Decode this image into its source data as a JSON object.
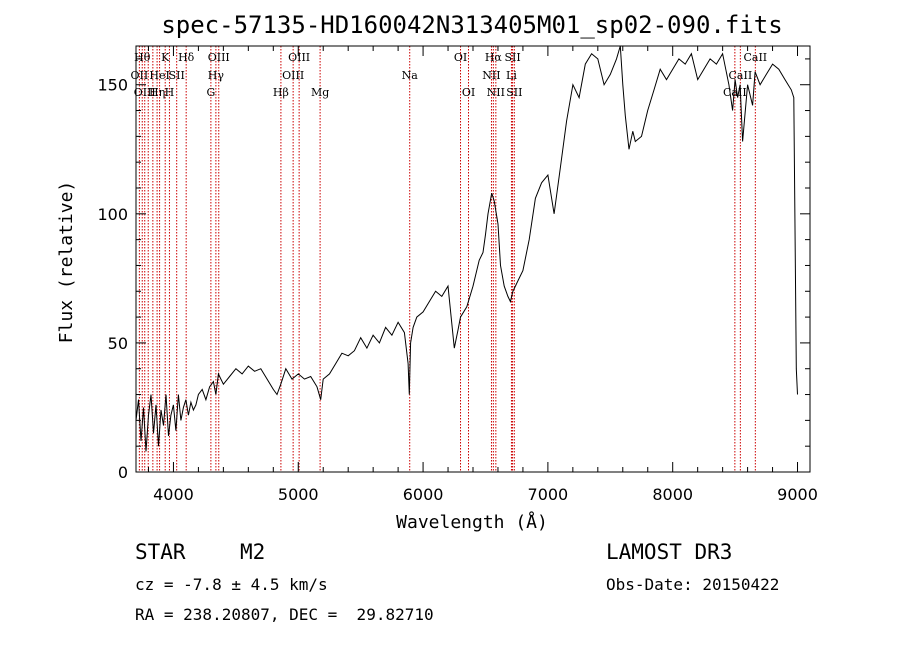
{
  "chart_data": {
    "type": "line",
    "title": "spec-57135-HD160042N313405M01_sp02-090.fits",
    "xlabel": "Wavelength (Å)",
    "ylabel": "Flux (relative)",
    "xlim": [
      3700,
      9100
    ],
    "ylim": [
      0,
      165
    ],
    "xticks": [
      4000,
      5000,
      6000,
      7000,
      8000,
      9000
    ],
    "yticks": [
      0,
      50,
      100,
      150
    ],
    "series": [
      {
        "name": "spectrum",
        "x": [
          3700,
          3720,
          3740,
          3760,
          3780,
          3800,
          3820,
          3840,
          3860,
          3880,
          3900,
          3920,
          3940,
          3960,
          3980,
          4000,
          4020,
          4040,
          4060,
          4080,
          4100,
          4120,
          4140,
          4160,
          4180,
          4200,
          4230,
          4260,
          4290,
          4320,
          4340,
          4360,
          4380,
          4400,
          4450,
          4500,
          4550,
          4600,
          4650,
          4700,
          4750,
          4800,
          4830,
          4860,
          4900,
          4950,
          5000,
          5050,
          5100,
          5150,
          5180,
          5200,
          5250,
          5300,
          5350,
          5400,
          5450,
          5500,
          5550,
          5600,
          5650,
          5700,
          5750,
          5800,
          5850,
          5880,
          5890,
          5900,
          5920,
          5950,
          6000,
          6050,
          6100,
          6150,
          6200,
          6250,
          6280,
          6300,
          6350,
          6400,
          6450,
          6480,
          6500,
          6520,
          6550,
          6570,
          6600,
          6620,
          6650,
          6680,
          6700,
          6720,
          6740,
          6760,
          6800,
          6850,
          6900,
          6950,
          7000,
          7050,
          7100,
          7150,
          7200,
          7250,
          7300,
          7350,
          7400,
          7450,
          7500,
          7550,
          7580,
          7600,
          7620,
          7650,
          7680,
          7700,
          7750,
          7800,
          7850,
          7900,
          7950,
          8000,
          8050,
          8100,
          8150,
          8200,
          8250,
          8300,
          8350,
          8400,
          8450,
          8480,
          8500,
          8520,
          8540,
          8560,
          8600,
          8640,
          8660,
          8700,
          8750,
          8800,
          8850,
          8900,
          8950,
          8970,
          8990,
          9000
        ],
        "values": [
          20,
          28,
          12,
          25,
          8,
          22,
          30,
          15,
          26,
          10,
          24,
          18,
          30,
          14,
          22,
          26,
          16,
          30,
          20,
          25,
          28,
          22,
          27,
          24,
          26,
          30,
          32,
          28,
          33,
          35,
          30,
          38,
          36,
          34,
          37,
          40,
          38,
          41,
          39,
          40,
          36,
          32,
          30,
          34,
          40,
          36,
          38,
          36,
          37,
          33,
          28,
          36,
          38,
          42,
          46,
          45,
          47,
          52,
          48,
          53,
          50,
          56,
          53,
          58,
          54,
          42,
          30,
          50,
          56,
          60,
          62,
          66,
          70,
          68,
          72,
          48,
          55,
          60,
          64,
          72,
          82,
          85,
          92,
          100,
          108,
          105,
          96,
          80,
          72,
          68,
          66,
          70,
          72,
          74,
          78,
          90,
          106,
          112,
          115,
          100,
          118,
          136,
          150,
          145,
          158,
          162,
          160,
          150,
          154,
          160,
          165,
          150,
          138,
          125,
          132,
          128,
          130,
          140,
          148,
          156,
          152,
          156,
          160,
          158,
          162,
          152,
          156,
          160,
          158,
          162,
          150,
          140,
          152,
          145,
          150,
          128,
          150,
          142,
          155,
          150,
          154,
          158,
          156,
          152,
          148,
          145,
          40,
          30
        ]
      }
    ],
    "lines": [
      {
        "w": 3727,
        "row": 1,
        "label": "OII"
      },
      {
        "w": 3750,
        "row": 0,
        "label": "Hθ"
      },
      {
        "w": 3770,
        "row": 2,
        "label": "OIII"
      },
      {
        "w": 3798,
        "row": 1,
        "label": ""
      },
      {
        "w": 3835,
        "row": 0,
        "label": ""
      },
      {
        "w": 3869,
        "row": 2,
        "label": "Hη"
      },
      {
        "w": 3889,
        "row": 1,
        "label": "HeI"
      },
      {
        "w": 3934,
        "row": 0,
        "label": "K"
      },
      {
        "w": 3968,
        "row": 2,
        "label": "H"
      },
      {
        "w": 4026,
        "row": 1,
        "label": "SII"
      },
      {
        "w": 4102,
        "row": 0,
        "label": "Hδ"
      },
      {
        "w": 4300,
        "row": 2,
        "label": "G"
      },
      {
        "w": 4340,
        "row": 1,
        "label": "Hγ"
      },
      {
        "w": 4363,
        "row": 0,
        "label": "OIII"
      },
      {
        "w": 4861,
        "row": 2,
        "label": "Hβ"
      },
      {
        "w": 4959,
        "row": 1,
        "label": "OIII"
      },
      {
        "w": 5007,
        "row": 0,
        "label": "OIII"
      },
      {
        "w": 5175,
        "row": 2,
        "label": "Mg"
      },
      {
        "w": 5893,
        "row": 1,
        "label": "Na"
      },
      {
        "w": 6300,
        "row": 0,
        "label": "OI"
      },
      {
        "w": 6364,
        "row": 2,
        "label": "OI"
      },
      {
        "w": 6548,
        "row": 1,
        "label": "NII"
      },
      {
        "w": 6563,
        "row": 0,
        "label": "Hα"
      },
      {
        "w": 6583,
        "row": 2,
        "label": "NII"
      },
      {
        "w": 6708,
        "row": 1,
        "label": "Li"
      },
      {
        "w": 6717,
        "row": 0,
        "label": "SII"
      },
      {
        "w": 6731,
        "row": 2,
        "label": "SII"
      },
      {
        "w": 8498,
        "row": 2,
        "label": "CaII"
      },
      {
        "w": 8542,
        "row": 1,
        "label": "CaII"
      },
      {
        "w": 8662,
        "row": 0,
        "label": "CaII"
      }
    ],
    "line_color": "#cc0000"
  },
  "info": {
    "object_class": "STAR",
    "subclass": "M2",
    "survey": "LAMOST DR3",
    "cz": "cz = -7.8 ± 4.5 km/s",
    "obs_date": "Obs-Date: 20150422",
    "coords": "RA = 238.20807, DEC =  29.82710"
  }
}
